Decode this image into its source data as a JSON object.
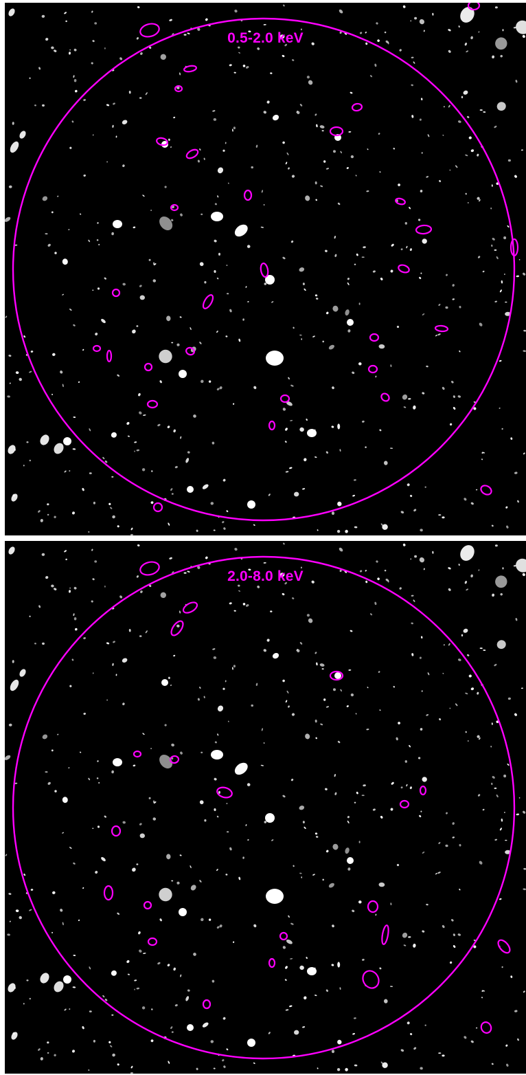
{
  "colors": {
    "background": "#000000",
    "region": "#ff00ff",
    "sources": "#ffffff",
    "separator": "#ffffff"
  },
  "panels": [
    {
      "id": "soft",
      "band_label": "0.5-2.0 keV",
      "marked_regions": 33
    },
    {
      "id": "hard",
      "band_label": "2.0-8.0 keV",
      "marked_regions": 23
    }
  ]
}
